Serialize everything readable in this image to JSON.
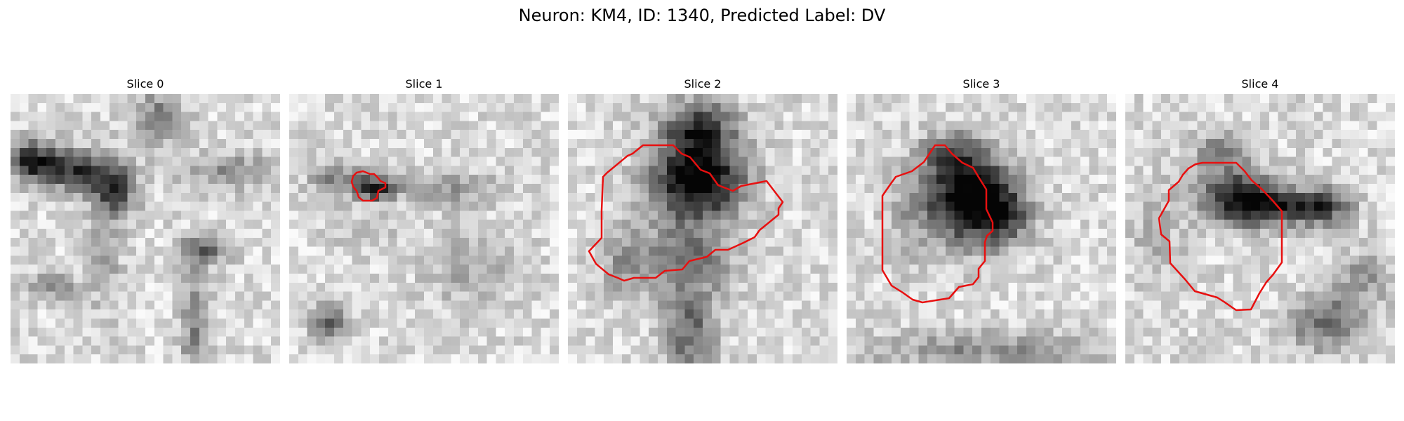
{
  "figure": {
    "title": "Neuron: KM4, ID: 1340, Predicted Label: DV",
    "contour_color": "#e81010"
  },
  "panels": [
    {
      "title": "Slice 0",
      "has_contour": false
    },
    {
      "title": "Slice 1",
      "has_contour": true
    },
    {
      "title": "Slice 2",
      "has_contour": true
    },
    {
      "title": "Slice 3",
      "has_contour": true
    },
    {
      "title": "Slice 4",
      "has_contour": true
    }
  ]
}
